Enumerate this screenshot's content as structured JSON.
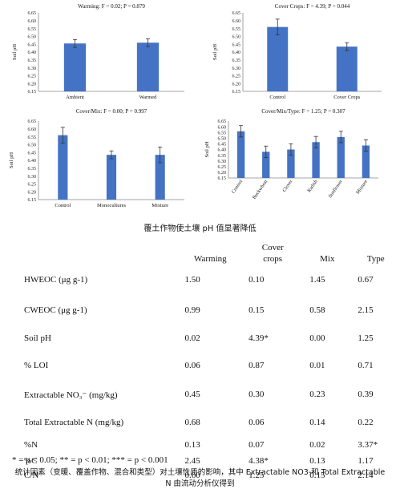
{
  "chart_data": [
    {
      "type": "bar",
      "title": "Warming:  F = 0.02; P = 0.879",
      "ylabel": "Soil pH",
      "ylim": [
        6.15,
        6.65
      ],
      "yticks": [
        "6.15",
        "6.20",
        "6.25",
        "6.30",
        "6.35",
        "6.40",
        "6.45",
        "6.50",
        "6.55",
        "6.60",
        "6.65"
      ],
      "categories": [
        "Ambient",
        "Warmed"
      ],
      "values": [
        6.455,
        6.46
      ],
      "errors": [
        0.025,
        0.025
      ],
      "rotate_labels": false
    },
    {
      "type": "bar",
      "title": "Cover Crops: F = 4.39; P = 0.044",
      "ylabel": "Soil pH",
      "ylim": [
        6.15,
        6.65
      ],
      "yticks": [
        "6.15",
        "6.20",
        "6.25",
        "6.30",
        "6.35",
        "6.40",
        "6.45",
        "6.50",
        "6.55",
        "6.60",
        "6.65"
      ],
      "categories": [
        "Control",
        "Cover Crops"
      ],
      "values": [
        6.56,
        6.435
      ],
      "errors": [
        0.05,
        0.025
      ],
      "rotate_labels": false
    },
    {
      "type": "bar",
      "title": "Cover/Mix:  F = 0.00; P = 0.997",
      "ylabel": "Soil pH",
      "ylim": [
        6.15,
        6.65
      ],
      "yticks": [
        "6.15",
        "6.20",
        "6.25",
        "6.30",
        "6.35",
        "6.40",
        "6.45",
        "6.50",
        "6.55",
        "6.60",
        "6.65"
      ],
      "categories": [
        "Control",
        "Monocultures",
        "Mixture"
      ],
      "values": [
        6.56,
        6.435,
        6.435
      ],
      "errors": [
        0.05,
        0.025,
        0.05
      ],
      "rotate_labels": false
    },
    {
      "type": "bar",
      "title": "Cover/Mix/Type:  F = 1.25; P = 0.307",
      "ylabel": "Soil pH",
      "ylim": [
        6.15,
        6.65
      ],
      "yticks": [
        "6.15",
        "6.20",
        "6.25",
        "6.30",
        "6.35",
        "6.40",
        "6.45",
        "6.50",
        "6.55",
        "6.60",
        "6.65"
      ],
      "categories": [
        "Control",
        "Buckwheat",
        "Clover",
        "Radish",
        "Sunflower",
        "Mixture"
      ],
      "values": [
        6.56,
        6.38,
        6.4,
        6.465,
        6.51,
        6.435
      ],
      "errors": [
        0.05,
        0.05,
        0.05,
        0.05,
        0.05,
        0.05
      ],
      "rotate_labels": true
    }
  ],
  "caption": "覆土作物使土壤 pH 值显著降低",
  "table": {
    "headers": {
      "warming": "Warming",
      "cover_crops_line1": "Cover",
      "cover_crops_line2": "crops",
      "mix": "Mix",
      "type": "Type"
    },
    "rows": [
      {
        "label": "HWEOC (μg g-1)",
        "warming": "1.50",
        "cover": "0.10",
        "mix": "1.45",
        "type": "0.67"
      },
      {
        "label": "CWEOC (μg g-1)",
        "warming": "0.99",
        "cover": "0.15",
        "mix": "0.58",
        "type": "2.15"
      },
      {
        "label": "Soil pH",
        "warming": "0.02",
        "cover": "4.39*",
        "mix": "0.00",
        "type": "1.25"
      },
      {
        "label": "% LOI",
        "warming": "0.06",
        "cover": "0.87",
        "mix": "0.01",
        "type": "0.71"
      },
      {
        "label": "Extractable NO₃⁻ (mg/kg)",
        "warming": "0.45",
        "cover": "0.30",
        "mix": "0.23",
        "type": "0.39"
      },
      {
        "label": "Total Extractable N (mg/kg)",
        "warming": "0.68",
        "cover": "0.06",
        "mix": "0.14",
        "type": "0.22"
      },
      {
        "label": "%N",
        "warming": "0.13",
        "cover": "0.07",
        "mix": "0.02",
        "type": "3.37*"
      },
      {
        "label": "%C",
        "warming": "2.45",
        "cover": "4.38*",
        "mix": "0.13",
        "type": "1.17"
      },
      {
        "label": "C/N",
        "warming": "0.60",
        "cover": "1.25",
        "mix": "0.15",
        "type": "2.14"
      }
    ]
  },
  "significance_note": "* = p < 0.05; ** = p < 0.01; *** = p < 0.001",
  "footer_line1": "统计因素（变暖、覆盖作物、混合和类型）对土壤性质的影响，其中 Extractable NO3-和 Total Extractable",
  "footer_line2": "N 由流动分析仪得到",
  "colors": {
    "bar": "#4472C4",
    "error": "#333333",
    "axis": "#888888"
  }
}
